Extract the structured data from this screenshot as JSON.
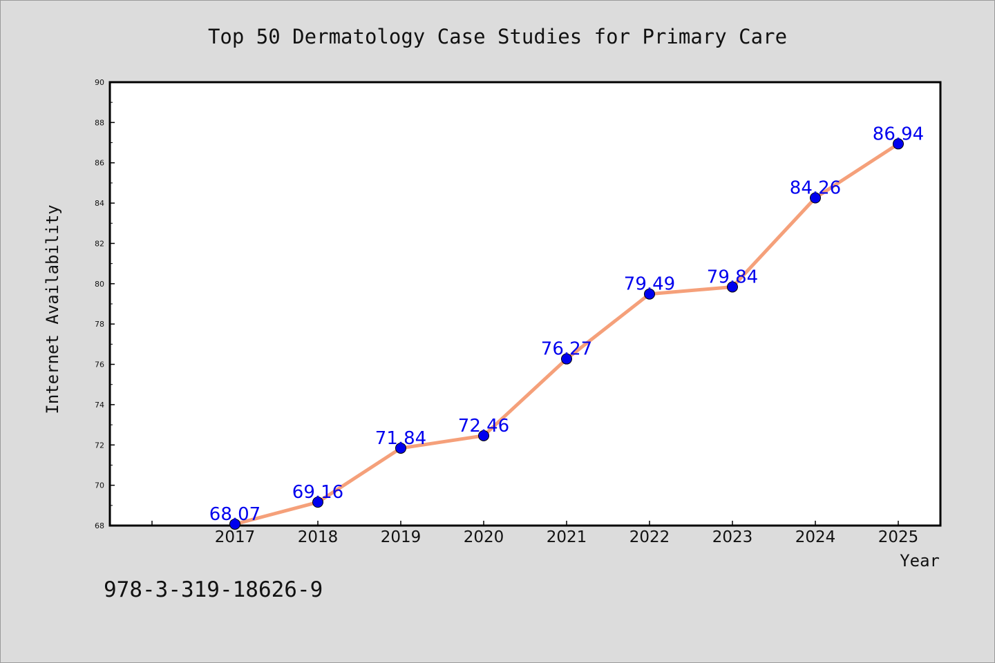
{
  "chart_data": {
    "type": "line",
    "title": "Top 50 Dermatology Case Studies for Primary Care",
    "xlabel": "Year",
    "ylabel": "Internet Availability",
    "categories": [
      "2017",
      "2018",
      "2019",
      "2020",
      "2021",
      "2022",
      "2023",
      "2024",
      "2025"
    ],
    "series": [
      {
        "values": [
          68.07,
          69.16,
          71.84,
          72.46,
          76.27,
          79.49,
          79.84,
          84.26,
          86.94
        ],
        "labels": [
          "68.07",
          "69.16",
          "71.84",
          "72.46",
          "76.27",
          "79.49",
          "79.84",
          "84.26",
          "86.94"
        ]
      }
    ],
    "ylim": [
      68,
      90
    ],
    "y_ticks": [
      "68",
      "70",
      "72",
      "74",
      "76",
      "78",
      "80",
      "82",
      "84",
      "86",
      "88",
      "90"
    ],
    "grid": false,
    "line_color": "#f5a07a",
    "marker_color": "#0000ee",
    "label_color": "#0000ee"
  },
  "footer_text": "978-3-319-18626-9"
}
